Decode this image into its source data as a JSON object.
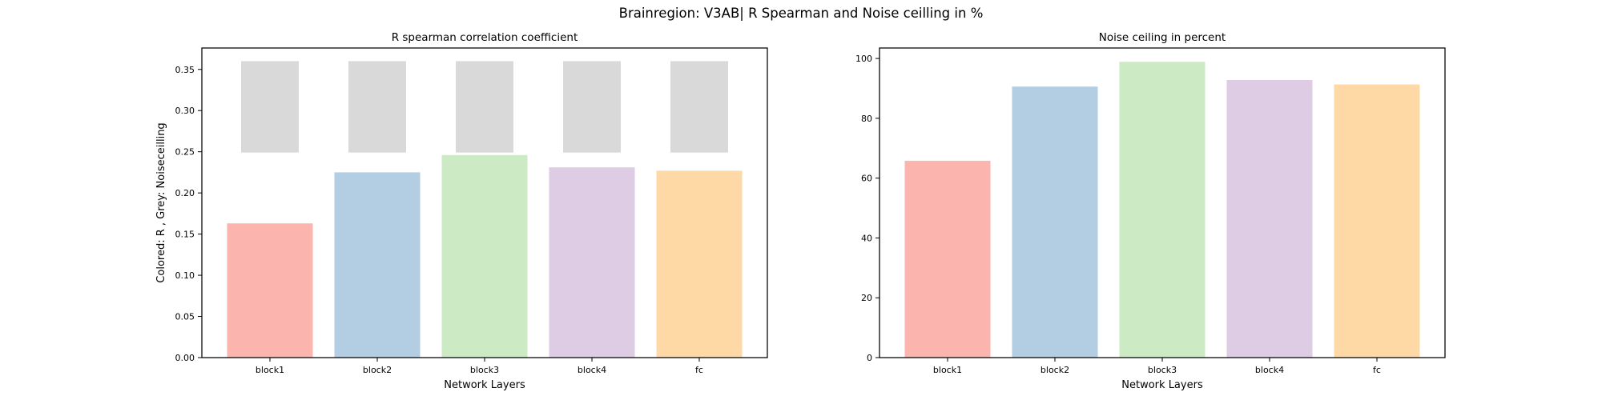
{
  "figure": {
    "suptitle": "Brainregion: V3AB| R Spearman and Noise ceilling in %"
  },
  "chart_data": [
    {
      "type": "bar",
      "title": "R spearman correlation coefficient",
      "xlabel": "Network Layers",
      "ylabel": "Colored: R , Grey: Noiseceilling",
      "categories": [
        "block1",
        "block2",
        "block3",
        "block4",
        "fc"
      ],
      "ylim": [
        0,
        0.376
      ],
      "yticks": [
        0.0,
        0.05,
        0.1,
        0.15,
        0.2,
        0.25,
        0.3,
        0.35
      ],
      "ytick_labels": [
        "0.00",
        "0.05",
        "0.10",
        "0.15",
        "0.20",
        "0.25",
        "0.30",
        "0.35"
      ],
      "series": [
        {
          "values": [
            0.163,
            0.225,
            0.246,
            0.231,
            0.227
          ],
          "colors": [
            "#fbb4ae",
            "#b3cde3",
            "#ccebc5",
            "#decbe4",
            "#fed9a6"
          ]
        }
      ],
      "noise_ceiling": {
        "lower": [
          0.249,
          0.249,
          0.249,
          0.249,
          0.249
        ],
        "upper": [
          0.36,
          0.36,
          0.36,
          0.36,
          0.36
        ],
        "color": "#d9d9d9"
      },
      "grid": false
    },
    {
      "type": "bar",
      "title": "Noise ceiling in percent",
      "xlabel": "Network Layers",
      "ylabel": "",
      "categories": [
        "block1",
        "block2",
        "block3",
        "block4",
        "fc"
      ],
      "ylim": [
        0,
        103.5
      ],
      "yticks": [
        0,
        20,
        40,
        60,
        80,
        100
      ],
      "ytick_labels": [
        "0",
        "20",
        "40",
        "60",
        "80",
        "100"
      ],
      "series": [
        {
          "values": [
            65.8,
            90.6,
            98.9,
            92.8,
            91.3
          ],
          "colors": [
            "#fbb4ae",
            "#b3cde3",
            "#ccebc5",
            "#decbe4",
            "#fed9a6"
          ]
        }
      ],
      "grid": false
    }
  ]
}
